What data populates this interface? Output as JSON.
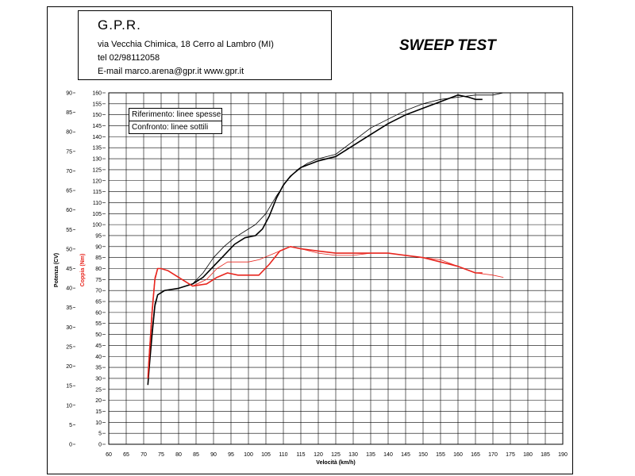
{
  "header": {
    "company": "G.P.R.",
    "address_line1": "via Vecchia Chimica, 18 Cerro al Lambro (MI)",
    "address_line2": "tel 02/98112058",
    "address_line3": "E-mail marco.arena@gpr.it  www.gpr.it"
  },
  "title": "SWEEP TEST",
  "legend": {
    "items": [
      "Riferimento: linee spesse",
      "Confronto: linee sottili"
    ]
  },
  "colors": {
    "power": "#000000",
    "torque": "#e8261f",
    "grid": "#000000"
  },
  "chart_data": {
    "type": "line",
    "title": "SWEEP TEST",
    "xlabel": "Velocità (km/h)",
    "ylabel_left": "Potenza (CV)",
    "ylabel_right": "Coppia (Nm)",
    "xlim": [
      60,
      190
    ],
    "x_ticks": [
      60,
      65,
      70,
      75,
      80,
      85,
      90,
      95,
      100,
      105,
      110,
      115,
      120,
      125,
      130,
      135,
      140,
      145,
      150,
      155,
      160,
      165,
      170,
      175,
      180,
      185,
      190
    ],
    "ylim_left": [
      0,
      90
    ],
    "y_left_ticks": [
      0,
      5,
      10,
      15,
      20,
      25,
      30,
      35,
      40,
      45,
      50,
      55,
      60,
      65,
      70,
      75,
      80,
      85,
      90
    ],
    "ylim_right": [
      0,
      160
    ],
    "y_right_ticks": [
      0,
      5,
      10,
      15,
      20,
      25,
      30,
      35,
      40,
      45,
      50,
      55,
      60,
      65,
      70,
      75,
      80,
      85,
      90,
      95,
      100,
      105,
      110,
      115,
      120,
      125,
      130,
      135,
      140,
      145,
      150,
      155,
      160
    ],
    "grid": true,
    "series": [
      {
        "name": "Riferimento: linee spesse",
        "quantity": "power",
        "line": "thick",
        "axis": "right",
        "x": [
          71.2,
          71.6,
          72.4,
          73.2,
          74.0,
          76.0,
          80.0,
          84.0,
          87.0,
          90.0,
          93.0,
          96.0,
          99.0,
          102.0,
          104.0,
          106.0,
          108.0,
          110.0,
          112.0,
          115.0,
          120.0,
          125.0,
          130.0,
          135.0,
          140.0,
          145.0,
          150.0,
          155.0,
          160.0,
          163.0,
          165.0,
          167.0
        ],
        "y": [
          27,
          35,
          50,
          63,
          68,
          70,
          71,
          73,
          76,
          81,
          86,
          91,
          94,
          95,
          98,
          104,
          112,
          118,
          122,
          126,
          129,
          131,
          136,
          141,
          146,
          150,
          153,
          156,
          159,
          158,
          157,
          157
        ]
      },
      {
        "name": "Confronto: linee sottili",
        "quantity": "power",
        "line": "thin",
        "axis": "right",
        "x": [
          71.2,
          71.6,
          72.4,
          73.2,
          74.0,
          76.0,
          80.0,
          84.0,
          87.0,
          90.0,
          93.0,
          96.0,
          99.0,
          102.0,
          105.0,
          108.0,
          111.0,
          114.0,
          117.0,
          120.0,
          125.0,
          130.0,
          135.0,
          140.0,
          145.0,
          150.0,
          155.0,
          160.0,
          165.0,
          170.0,
          173.0
        ],
        "y": [
          27,
          36,
          52,
          64,
          68,
          70,
          71,
          73,
          78,
          85,
          90,
          94,
          97,
          100,
          105,
          113,
          120,
          125,
          128,
          130,
          132,
          138,
          144,
          148,
          152,
          155,
          157,
          158,
          159,
          159,
          160
        ]
      },
      {
        "name": "Riferimento: linee spesse",
        "quantity": "torque",
        "line": "thick",
        "axis": "right",
        "x": [
          71.2,
          71.6,
          72.4,
          73.2,
          74.0,
          75.0,
          77.0,
          80.0,
          84.0,
          88.0,
          91.0,
          94.0,
          97.0,
          100.0,
          103.0,
          106.0,
          109.0,
          112.0,
          115.0,
          120.0,
          125.0,
          130.0,
          135.0,
          140.0,
          145.0,
          150.0,
          155.0,
          160.0,
          165.0,
          167.0
        ],
        "y": [
          30,
          40,
          60,
          75,
          80,
          80,
          79,
          76,
          72,
          73,
          76,
          78,
          77,
          77,
          77,
          82,
          88,
          90,
          89,
          88,
          87,
          87,
          87,
          87,
          86,
          85,
          83,
          81,
          78,
          78
        ]
      },
      {
        "name": "Confronto: linee sottili",
        "quantity": "torque",
        "line": "thin",
        "axis": "right",
        "x": [
          71.2,
          71.6,
          72.4,
          73.2,
          74.0,
          75.0,
          77.0,
          80.0,
          84.0,
          88.0,
          91.0,
          94.0,
          97.0,
          100.0,
          103.0,
          106.0,
          109.0,
          112.0,
          115.0,
          120.0,
          125.0,
          130.0,
          135.0,
          140.0,
          145.0,
          150.0,
          155.0,
          160.0,
          165.0,
          170.0,
          173.0
        ],
        "y": [
          32,
          42,
          62,
          76,
          80,
          80,
          79,
          76,
          72,
          75,
          80,
          83,
          83,
          83,
          84,
          86,
          88,
          90,
          89,
          87,
          86,
          86,
          87,
          87,
          86,
          85,
          84,
          81,
          78,
          77,
          76
        ]
      }
    ]
  }
}
